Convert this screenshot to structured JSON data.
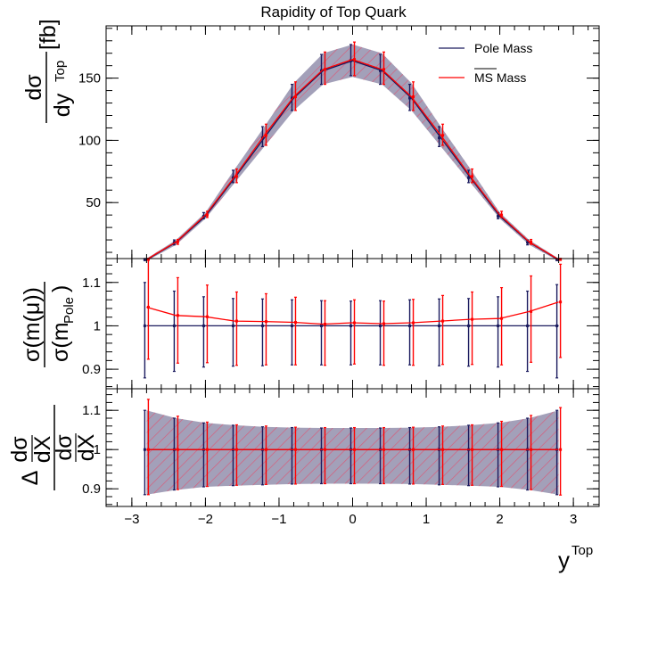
{
  "chart_data": {
    "type": "line",
    "title": "Rapidity of Top Quark",
    "x": [
      -2.8,
      -2.4,
      -2.0,
      -1.6,
      -1.2,
      -0.8,
      -0.4,
      0.0,
      0.4,
      0.8,
      1.2,
      1.6,
      2.0,
      2.4,
      2.8
    ],
    "xlabel": "Top",
    "xlabel_base": "y",
    "xlim": [
      -3.35,
      3.35
    ],
    "x_ticks": [
      -3,
      -2,
      -1,
      0,
      1,
      2,
      3
    ],
    "x_tick_labels": [
      "−3",
      "−2",
      "−1",
      "0",
      "1",
      "2",
      "3"
    ],
    "legend": {
      "position": "top-right",
      "entries": [
        {
          "label": "Pole Mass",
          "color": "#1a1a5e"
        },
        {
          "label": "MS",
          "suffix": " Mass",
          "color": "#ff0000"
        }
      ]
    },
    "panels": [
      {
        "name": "distribution",
        "ylabel_num": "dσ",
        "ylabel_den": "dy",
        "ylabel_den_sup": "Top",
        "ylabel_unit": "[fb]",
        "ylim": [
          5,
          192
        ],
        "y_ticks": [
          50,
          100,
          150
        ],
        "y_tick_labels": [
          "50",
          "100",
          "150"
        ],
        "band_low": [
          3,
          16,
          37,
          66,
          95,
          124,
          145,
          151,
          145,
          124,
          95,
          66,
          37,
          16,
          3
        ],
        "band_high": [
          5,
          20,
          42,
          77,
          111,
          146,
          170,
          177,
          170,
          146,
          111,
          77,
          42,
          20,
          5
        ],
        "series": [
          {
            "name": "Pole Mass",
            "color": "#1a1a5e",
            "values": [
              4,
              18,
              39,
              70,
              102,
              134,
              156,
              164,
              156,
              134,
              102,
              70,
              39,
              18,
              4
            ],
            "err_low": [
              1,
              2,
              2,
              4,
              7,
              10,
              11,
              12,
              11,
              10,
              7,
              4,
              2,
              2,
              1
            ],
            "err_high": [
              1,
              2,
              3,
              6,
              9,
              11,
              13,
              13,
              13,
              11,
              9,
              6,
              3,
              2,
              1
            ]
          },
          {
            "name": "MS Mass",
            "color": "#ff0000",
            "values": [
              4.2,
              18.4,
              40,
              71,
              104,
              135,
              157,
              165,
              157,
              135,
              104,
              71,
              40,
              18.4,
              4.2
            ],
            "err_low": [
              1,
              2,
              2,
              5,
              8,
              11,
              12,
              13,
              12,
              11,
              8,
              5,
              2,
              2,
              1
            ],
            "err_high": [
              1,
              2,
              3,
              6,
              9,
              12,
              14,
              14,
              14,
              12,
              9,
              6,
              3,
              2,
              1
            ]
          }
        ]
      },
      {
        "name": "mass-ratio",
        "ylabel_num": "σ(m(μ))",
        "ylabel_den": "σ(m",
        "ylabel_den_sub": "Pole",
        "ylabel_den_close": ")",
        "ylim": [
          0.855,
          1.155
        ],
        "y_ticks": [
          0.9,
          1.0,
          1.1
        ],
        "y_tick_labels": [
          "0.9",
          "1",
          "1.1"
        ],
        "series": [
          {
            "name": "Pole Mass",
            "color": "#1a1a5e",
            "values": [
              1,
              1,
              1,
              1,
              1,
              1,
              1,
              1,
              1,
              1,
              1,
              1,
              1,
              1,
              1
            ],
            "err_low": [
              0.12,
              0.105,
              0.095,
              0.093,
              0.092,
              0.09,
              0.09,
              0.09,
              0.09,
              0.09,
              0.092,
              0.093,
              0.095,
              0.105,
              0.12
            ],
            "err_high": [
              0.1,
              0.08,
              0.067,
              0.063,
              0.062,
              0.06,
              0.058,
              0.057,
              0.058,
              0.06,
              0.062,
              0.063,
              0.067,
              0.08,
              0.095
            ]
          },
          {
            "name": "MS Mass",
            "color": "#ff0000",
            "values": [
              1.043,
              1.024,
              1.021,
              1.011,
              1.01,
              1.008,
              1.004,
              1.007,
              1.005,
              1.007,
              1.011,
              1.015,
              1.017,
              1.033,
              1.055
            ],
            "err_low": [
              0.12,
              0.11,
              0.106,
              0.102,
              0.1,
              0.098,
              0.095,
              0.095,
              0.096,
              0.098,
              0.1,
              0.104,
              0.107,
              0.117,
              0.128
            ],
            "err_high": [
              0.11,
              0.087,
              0.073,
              0.067,
              0.064,
              0.058,
              0.054,
              0.053,
              0.052,
              0.054,
              0.059,
              0.063,
              0.071,
              0.082,
              0.087
            ]
          }
        ]
      },
      {
        "name": "relative-uncertainty",
        "ylabel_num_delta": "Δ",
        "ylabel_num": "dσ",
        "ylabel_num_den": "dX",
        "ylabel_den": "dσ",
        "ylabel_den_den": "dX",
        "ylim": [
          0.855,
          1.155
        ],
        "y_ticks": [
          0.9,
          1.0,
          1.1
        ],
        "y_tick_labels": [
          "0.9",
          "1",
          "1.1"
        ],
        "band_low": [
          0.885,
          0.897,
          0.905,
          0.908,
          0.91,
          0.912,
          0.913,
          0.913,
          0.913,
          0.912,
          0.91,
          0.908,
          0.905,
          0.897,
          0.885
        ],
        "band_high": [
          1.1,
          1.08,
          1.068,
          1.062,
          1.058,
          1.056,
          1.055,
          1.055,
          1.055,
          1.056,
          1.058,
          1.062,
          1.068,
          1.08,
          1.1
        ],
        "series": [
          {
            "name": "Pole Mass",
            "color": "#1a1a5e",
            "values": [
              1,
              1,
              1,
              1,
              1,
              1,
              1,
              1,
              1,
              1,
              1,
              1,
              1,
              1,
              1
            ],
            "err_low": [
              0.115,
              0.103,
              0.095,
              0.092,
              0.09,
              0.088,
              0.087,
              0.087,
              0.087,
              0.088,
              0.09,
              0.092,
              0.095,
              0.103,
              0.115
            ],
            "err_high": [
              0.1,
              0.08,
              0.068,
              0.062,
              0.058,
              0.056,
              0.055,
              0.055,
              0.055,
              0.056,
              0.058,
              0.062,
              0.068,
              0.08,
              0.1
            ]
          },
          {
            "name": "MS Mass",
            "color": "#ff0000",
            "values": [
              1,
              1,
              1,
              1,
              1,
              1,
              1,
              1,
              1,
              1,
              1,
              1,
              1,
              1,
              1
            ],
            "err_low": [
              0.115,
              0.102,
              0.094,
              0.091,
              0.089,
              0.088,
              0.087,
              0.087,
              0.087,
              0.088,
              0.089,
              0.091,
              0.094,
              0.102,
              0.116
            ],
            "err_high": [
              0.128,
              0.085,
              0.07,
              0.063,
              0.06,
              0.057,
              0.056,
              0.056,
              0.056,
              0.057,
              0.06,
              0.063,
              0.072,
              0.087,
              0.107
            ]
          }
        ]
      }
    ]
  }
}
